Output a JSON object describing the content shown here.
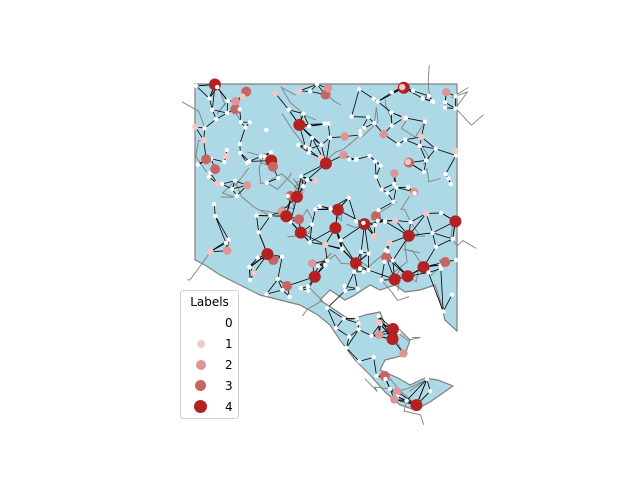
{
  "map": {
    "land_color": "#add8e6",
    "boundary_color": "#808080",
    "edge_color": "#000000",
    "node_color_default": "#ffffff"
  },
  "legend": {
    "title": "Labels",
    "entries": [
      {
        "label": "0",
        "color": "#ffffff"
      },
      {
        "label": "1",
        "color": "#f0c8c8"
      },
      {
        "label": "2",
        "color": "#dc9696"
      },
      {
        "label": "3",
        "color": "#c86464"
      },
      {
        "label": "4",
        "color": "#b22222"
      }
    ]
  }
}
